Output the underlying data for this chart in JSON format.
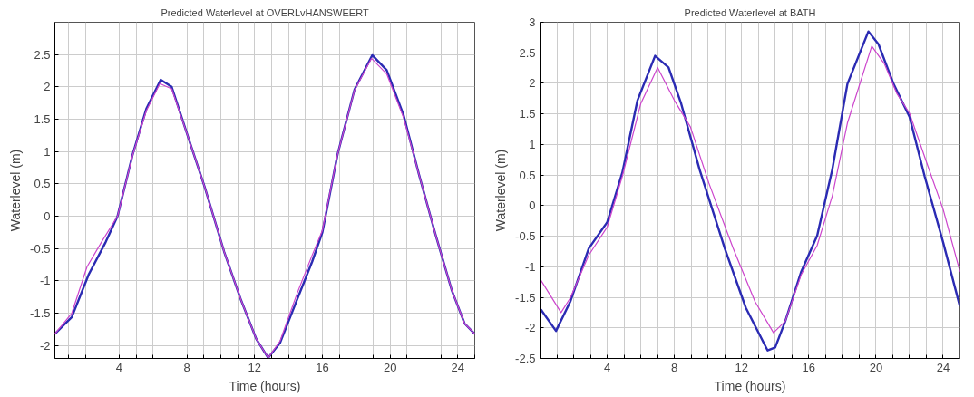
{
  "chart_data": [
    {
      "type": "line",
      "title": "Predicted Waterlevel at OVERLvHANSWEERT",
      "xlabel": "Time (hours)",
      "ylabel": "Waterlevel (m)",
      "grid": true,
      "marker": "none",
      "line_style": "solid",
      "xlim": [
        0.2,
        25
      ],
      "ylim": [
        -2.2,
        3
      ],
      "xticks": [
        {
          "value": 1,
          "label": null
        },
        {
          "value": 2,
          "label": null
        },
        {
          "value": 3,
          "label": null
        },
        4,
        {
          "value": 5,
          "label": null
        },
        {
          "value": 6,
          "label": null
        },
        {
          "value": 7,
          "label": null
        },
        8,
        {
          "value": 9,
          "label": null
        },
        {
          "value": 10,
          "label": null
        },
        {
          "value": 11,
          "label": null
        },
        12,
        {
          "value": 13,
          "label": null
        },
        {
          "value": 14,
          "label": null
        },
        {
          "value": 15,
          "label": null
        },
        16,
        {
          "value": 17,
          "label": null
        },
        {
          "value": 18,
          "label": null
        },
        {
          "value": 19,
          "label": null
        },
        20,
        {
          "value": 21,
          "label": null
        },
        {
          "value": 22,
          "label": null
        },
        {
          "value": 23,
          "label": null
        },
        24,
        {
          "value": 25,
          "label": null
        }
      ],
      "yticks": [
        -2,
        -1.5,
        -1,
        -0.5,
        0,
        0.5,
        1,
        1.5,
        2,
        2.5
      ],
      "series": [
        {
          "color": "#cc44cc",
          "x": [
            0.2,
            1.2,
            2.1,
            3.0,
            3.9,
            4.8,
            5.6,
            6.4,
            7.1,
            8.1,
            9.05,
            10.2,
            11.2,
            12.1,
            12.8,
            13.5,
            14.5,
            15.4,
            16.0,
            16.9,
            17.9,
            18.9,
            19.8,
            20.8,
            21.7,
            22.7,
            23.65,
            24.4,
            25.0
          ],
          "values": [
            -1.82,
            -1.5,
            -0.78,
            -0.38,
            0.0,
            0.95,
            1.63,
            2.05,
            1.97,
            1.2,
            0.45,
            -0.55,
            -1.3,
            -1.9,
            -2.19,
            -1.93,
            -1.2,
            -0.6,
            -0.22,
            0.96,
            1.95,
            2.44,
            2.2,
            1.52,
            0.65,
            -0.3,
            -1.15,
            -1.66,
            -1.82
          ]
        },
        {
          "color": "#2b2bb3",
          "x": [
            0.2,
            1.2,
            2.2,
            3.2,
            3.9,
            4.8,
            5.6,
            6.45,
            7.1,
            8.1,
            9.05,
            10.2,
            11.2,
            12.1,
            12.8,
            13.5,
            14.4,
            15.4,
            16.0,
            16.9,
            17.9,
            18.95,
            19.8,
            20.8,
            21.7,
            22.7,
            23.65,
            24.4,
            25.0
          ],
          "values": [
            -1.82,
            -1.56,
            -0.9,
            -0.4,
            0.0,
            0.96,
            1.66,
            2.11,
            2.0,
            1.2,
            0.45,
            -0.55,
            -1.3,
            -1.9,
            -2.19,
            -1.96,
            -1.36,
            -0.7,
            -0.25,
            0.96,
            1.96,
            2.49,
            2.26,
            1.56,
            0.65,
            -0.3,
            -1.15,
            -1.66,
            -1.82
          ]
        }
      ]
    },
    {
      "type": "line",
      "title": "Predicted Waterlevel at BATH",
      "xlabel": "Time (hours)",
      "ylabel": "Waterlevel (m)",
      "grid": true,
      "marker": "none",
      "line_style": "solid",
      "xlim": [
        0,
        25
      ],
      "ylim": [
        -2.5,
        3
      ],
      "xticks": [
        {
          "value": 1,
          "label": null
        },
        {
          "value": 2,
          "label": null
        },
        {
          "value": 3,
          "label": null
        },
        4,
        {
          "value": 5,
          "label": null
        },
        {
          "value": 6,
          "label": null
        },
        {
          "value": 7,
          "label": null
        },
        8,
        {
          "value": 9,
          "label": null
        },
        {
          "value": 10,
          "label": null
        },
        {
          "value": 11,
          "label": null
        },
        12,
        {
          "value": 13,
          "label": null
        },
        {
          "value": 14,
          "label": null
        },
        {
          "value": 15,
          "label": null
        },
        16,
        {
          "value": 17,
          "label": null
        },
        {
          "value": 18,
          "label": null
        },
        {
          "value": 19,
          "label": null
        },
        20,
        {
          "value": 21,
          "label": null
        },
        {
          "value": 22,
          "label": null
        },
        {
          "value": 23,
          "label": null
        },
        24
      ],
      "yticks": [
        -2.5,
        -2,
        -1.5,
        -1,
        -0.5,
        0,
        0.5,
        1,
        1.5,
        2,
        2.5,
        3
      ],
      "series": [
        {
          "color": "#cc44cc",
          "x": [
            0.05,
            1.25,
            1.8,
            2.9,
            4.0,
            4.9,
            6.0,
            7.0,
            8.0,
            8.95,
            10.05,
            11.5,
            12.8,
            13.9,
            14.6,
            15.55,
            16.5,
            17.4,
            18.3,
            19.75,
            20.5,
            21.25,
            22.0,
            23.1,
            24.0,
            25.0
          ],
          "values": [
            -1.22,
            -1.75,
            -1.51,
            -0.81,
            -0.35,
            0.48,
            1.67,
            2.26,
            1.72,
            1.29,
            0.37,
            -0.7,
            -1.57,
            -2.08,
            -1.89,
            -1.13,
            -0.65,
            0.16,
            1.35,
            2.61,
            2.32,
            1.83,
            1.51,
            0.64,
            -0.06,
            -1.08
          ]
        },
        {
          "color": "#2b2bb3",
          "x": [
            0.05,
            0.95,
            1.8,
            2.9,
            4.0,
            4.9,
            5.8,
            6.85,
            7.65,
            8.4,
            9.5,
            11.0,
            12.25,
            13.55,
            14.0,
            14.6,
            15.55,
            16.5,
            17.4,
            18.3,
            19.55,
            20.15,
            21.05,
            22.0,
            22.9,
            24.0,
            25.0
          ],
          "values": [
            -1.7,
            -2.05,
            -1.57,
            -0.7,
            -0.27,
            0.54,
            1.72,
            2.45,
            2.26,
            1.67,
            0.59,
            -0.7,
            -1.67,
            -2.37,
            -2.32,
            -1.89,
            -1.08,
            -0.49,
            0.59,
            1.99,
            2.85,
            2.64,
            1.99,
            1.45,
            0.48,
            -0.6,
            -1.65
          ]
        }
      ]
    }
  ]
}
